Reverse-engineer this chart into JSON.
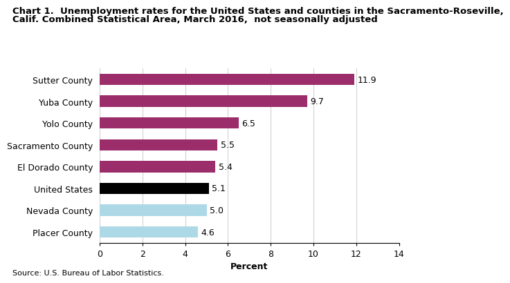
{
  "title_line1": "Chart 1.  Unemployment rates for the United States and counties in the Sacramento-Roseville,",
  "title_line2": "Calif. Combined Statistical Area, March 2016,  not seasonally adjusted",
  "categories": [
    "Placer County",
    "Nevada County",
    "United States",
    "El Dorado County",
    "Sacramento County",
    "Yolo County",
    "Yuba County",
    "Sutter County"
  ],
  "values": [
    4.6,
    5.0,
    5.1,
    5.4,
    5.5,
    6.5,
    9.7,
    11.9
  ],
  "colors": [
    "#add8e6",
    "#add8e6",
    "#000000",
    "#9b2d6b",
    "#9b2d6b",
    "#9b2d6b",
    "#9b2d6b",
    "#9b2d6b"
  ],
  "xlabel": "Percent",
  "xlim": [
    0,
    14
  ],
  "xticks": [
    0,
    2,
    4,
    6,
    8,
    10,
    12,
    14
  ],
  "source": "Source: U.S. Bureau of Labor Statistics.",
  "tick_fontsize": 9,
  "label_fontsize": 9,
  "title_fontsize": 9.5,
  "source_fontsize": 8,
  "bar_height": 0.52
}
